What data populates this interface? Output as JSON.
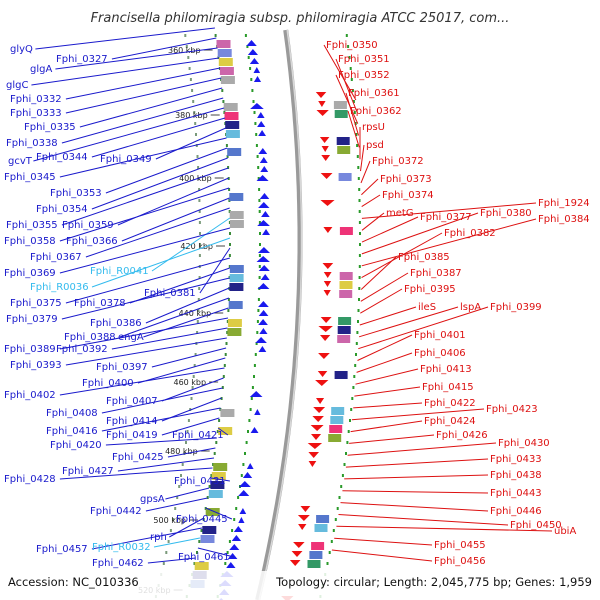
{
  "title": "Francisella philomiragia subsp. philomiragia ATCC 25017, com...",
  "footer": {
    "accession": "Accession: NC_010336",
    "topology": "Topology: circular; Length: 2,045,775 bp; Genes: 1,959"
  },
  "colors": {
    "forward_label": "#1a1acc",
    "reverse_label": "#dd1111",
    "rna_label": "#33bbee",
    "backbone": "#9a9a9a",
    "tick_dot": "#2a9a2a"
  },
  "scale_ticks": [
    "360 kbp",
    "380 kbp",
    "400 kbp",
    "420 kbp",
    "440 kbp",
    "460 kbp",
    "480 kbp",
    "500 kbp",
    "520 kbp"
  ],
  "left_labels": [
    {
      "text": "glyQ",
      "kind": "gene"
    },
    {
      "text": "Fphi_0327",
      "kind": "gene"
    },
    {
      "text": "glgA",
      "kind": "gene"
    },
    {
      "text": "glgC",
      "kind": "gene"
    },
    {
      "text": "Fphi_0332",
      "kind": "gene"
    },
    {
      "text": "Fphi_0333",
      "kind": "gene"
    },
    {
      "text": "Fphi_0335",
      "kind": "gene"
    },
    {
      "text": "Fphi_0338",
      "kind": "gene"
    },
    {
      "text": "gcvT",
      "kind": "gene"
    },
    {
      "text": "Fphi_0344",
      "kind": "gene"
    },
    {
      "text": "Fphi_0349",
      "kind": "gene"
    },
    {
      "text": "Fphi_0345",
      "kind": "gene"
    },
    {
      "text": "Fphi_0353",
      "kind": "gene"
    },
    {
      "text": "Fphi_0354",
      "kind": "gene"
    },
    {
      "text": "Fphi_0355",
      "kind": "gene"
    },
    {
      "text": "Fphi_0359",
      "kind": "gene"
    },
    {
      "text": "Fphi_0358",
      "kind": "gene"
    },
    {
      "text": "Fphi_0366",
      "kind": "gene"
    },
    {
      "text": "Fphi_0367",
      "kind": "gene"
    },
    {
      "text": "Fphi_R0041",
      "kind": "rna"
    },
    {
      "text": "Fphi_0369",
      "kind": "gene"
    },
    {
      "text": "Fphi_R0036",
      "kind": "rna"
    },
    {
      "text": "Fphi_0381",
      "kind": "gene"
    },
    {
      "text": "Fphi_0375",
      "kind": "gene"
    },
    {
      "text": "Fphi_0378",
      "kind": "gene"
    },
    {
      "text": "Fphi_0379",
      "kind": "gene"
    },
    {
      "text": "Fphi_0386",
      "kind": "gene"
    },
    {
      "text": "Fphi_0388",
      "kind": "gene"
    },
    {
      "text": "engA",
      "kind": "gene"
    },
    {
      "text": "Fphi_0389",
      "kind": "gene"
    },
    {
      "text": "Fphi_0392",
      "kind": "gene"
    },
    {
      "text": "Fphi_0393",
      "kind": "gene"
    },
    {
      "text": "Fphi_0397",
      "kind": "gene"
    },
    {
      "text": "Fphi_0400",
      "kind": "gene"
    },
    {
      "text": "Fphi_0402",
      "kind": "gene"
    },
    {
      "text": "Fphi_0407",
      "kind": "gene"
    },
    {
      "text": "Fphi_0408",
      "kind": "gene"
    },
    {
      "text": "Fphi_0414",
      "kind": "gene"
    },
    {
      "text": "Fphi_0416",
      "kind": "gene"
    },
    {
      "text": "Fphi_0419",
      "kind": "gene"
    },
    {
      "text": "Fphi_0421",
      "kind": "gene"
    },
    {
      "text": "Fphi_0420",
      "kind": "gene"
    },
    {
      "text": "Fphi_0425",
      "kind": "gene"
    },
    {
      "text": "Fphi_0427",
      "kind": "gene"
    },
    {
      "text": "Fphi_0428",
      "kind": "gene"
    },
    {
      "text": "Fphi_0431",
      "kind": "gene"
    },
    {
      "text": "gpsA",
      "kind": "gene"
    },
    {
      "text": "Fphi_0442",
      "kind": "gene"
    },
    {
      "text": "Fphi_0445",
      "kind": "gene"
    },
    {
      "text": "rph",
      "kind": "gene"
    },
    {
      "text": "Fphi_0457",
      "kind": "gene"
    },
    {
      "text": "Fphi_R0032",
      "kind": "rna"
    },
    {
      "text": "Fphi_0461",
      "kind": "gene"
    },
    {
      "text": "Fphi_0462",
      "kind": "gene"
    }
  ],
  "right_labels": [
    "Fphi_0350",
    "Fphi_0351",
    "Fphi_0352",
    "Fphi_0361",
    "Fphi_0362",
    "rpsU",
    "psd",
    "Fphi_0372",
    "Fphi_0373",
    "Fphi_0374",
    "Fphi_1924",
    "metG",
    "Fphi_0377",
    "Fphi_0380",
    "Fphi_0384",
    "Fphi_0382",
    "Fphi_0385",
    "Fphi_0387",
    "Fphi_0395",
    "ileS",
    "lspA",
    "Fphi_0399",
    "Fphi_0401",
    "Fphi_0406",
    "Fphi_0413",
    "Fphi_0415",
    "Fphi_0422",
    "Fphi_0423",
    "Fphi_0424",
    "Fphi_0426",
    "Fphi_0430",
    "Fphi_0433",
    "Fphi_0438",
    "Fphi_0443",
    "Fphi_0446",
    "Fphi_0450",
    "ubiA",
    "Fphi_0455",
    "Fphi_0456"
  ]
}
